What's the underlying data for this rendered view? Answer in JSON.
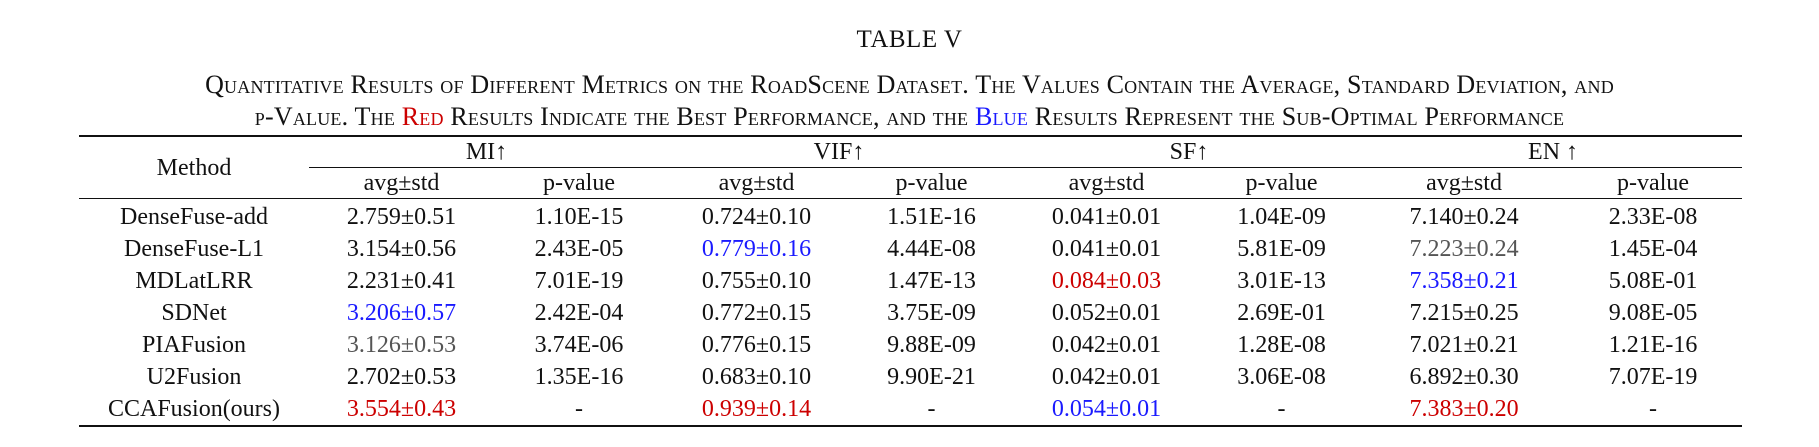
{
  "table_label": "TABLE V",
  "caption": {
    "line1": "Quantitative Results of Different Metrics on the RoadScene Dataset. The Values Contain the Average, Standard Deviation, and",
    "line2_a": "p-Value. The ",
    "line2_red": "Red",
    "line2_b": " Results Indicate the Best Performance, and the ",
    "line2_blue": "Blue",
    "line2_c": " Results Represent the Sub-Optimal Performance"
  },
  "table": {
    "method_header": "Method",
    "metric_groups": [
      "MI↑",
      "VIF↑",
      "SF↑",
      "EN ↑"
    ],
    "sub_headers": [
      "avg±std",
      "p-value",
      "avg±std",
      "p-value",
      "avg±std",
      "p-value",
      "avg±std",
      "p-value"
    ],
    "rows": [
      {
        "method": "DenseFuse-add",
        "cells": [
          "2.759±0.51",
          "1.10E-15",
          "0.724±0.10",
          "1.51E-16",
          "0.041±0.01",
          "1.04E-09",
          "7.140±0.24",
          "2.33E-08"
        ]
      },
      {
        "method": "DenseFuse-L1",
        "cells": [
          "3.154±0.56",
          "2.43E-05",
          "0.779±0.16",
          "4.44E-08",
          "0.041±0.01",
          "5.81E-09",
          "7.223±0.24",
          "1.45E-04"
        ]
      },
      {
        "method": "MDLatLRR",
        "cells": [
          "2.231±0.41",
          "7.01E-19",
          "0.755±0.10",
          "1.47E-13",
          "0.084±0.03",
          "3.01E-13",
          "7.358±0.21",
          "5.08E-01"
        ]
      },
      {
        "method": "SDNet",
        "cells": [
          "3.206±0.57",
          "2.42E-04",
          "0.772±0.15",
          "3.75E-09",
          "0.052±0.01",
          "2.69E-01",
          "7.215±0.25",
          "9.08E-05"
        ]
      },
      {
        "method": "PIAFusion",
        "cells": [
          "3.126±0.53",
          "3.74E-06",
          "0.776±0.15",
          "9.88E-09",
          "0.042±0.01",
          "1.28E-08",
          "7.021±0.21",
          "1.21E-16"
        ]
      },
      {
        "method": "U2Fusion",
        "cells": [
          "2.702±0.53",
          "1.35E-16",
          "0.683±0.10",
          "9.90E-21",
          "0.042±0.01",
          "3.06E-08",
          "6.892±0.30",
          "7.07E-19"
        ]
      },
      {
        "method": "CCAFusion(ours)",
        "cells": [
          "3.554±0.43",
          "-",
          "0.939±0.14",
          "-",
          "0.054±0.01",
          "-",
          "7.383±0.20",
          "-"
        ]
      }
    ]
  },
  "colors": {
    "best": "#cc0000",
    "second_best": "#1a1aff"
  }
}
